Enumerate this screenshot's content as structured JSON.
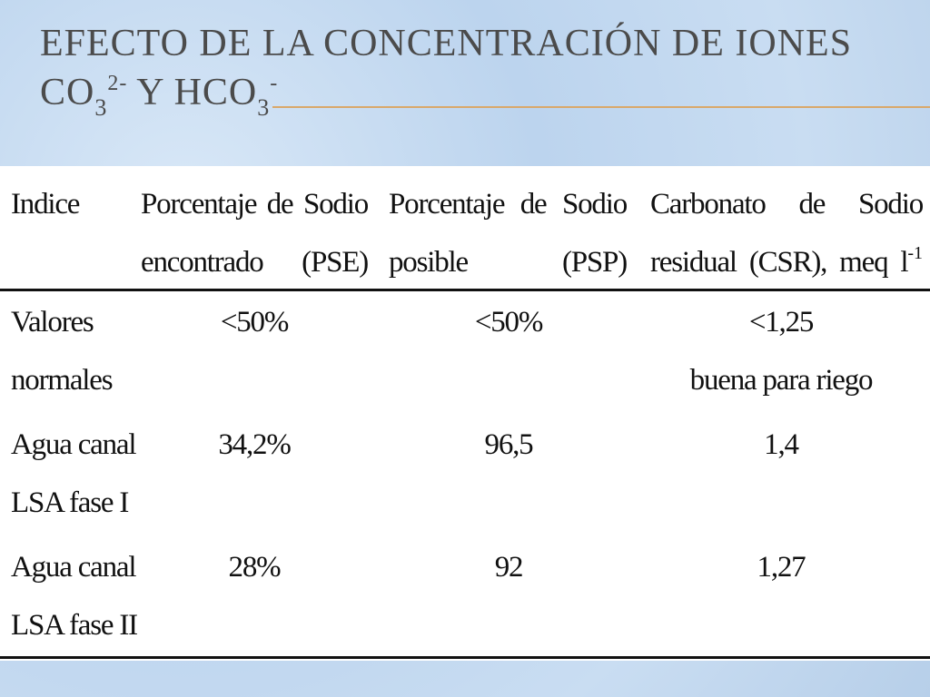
{
  "title": {
    "line1": "EFECTO DE LA CONCENTRACIÓN DE IONES",
    "line2": [
      "CO",
      "3",
      "2-",
      " Y HCO",
      "3",
      "-"
    ]
  },
  "table": {
    "header": [
      "Indice",
      "Porcentaje de Sodio encontrado (PSE)",
      "Porcentaje de Sodio posible (PSP)",
      [
        "Carbonato de Sodio residual (CSR), meq l",
        "-1"
      ]
    ],
    "rows": [
      [
        [
          "Valores",
          "normales"
        ],
        "<50%",
        "<50%",
        [
          "<1,25",
          "buena para riego"
        ]
      ],
      [
        [
          "Agua canal",
          "LSA fase I"
        ],
        "34,2%",
        "96,5",
        "1,4"
      ],
      [
        [
          "Agua canal",
          "LSA fase II"
        ],
        "28%",
        "92",
        "1,27"
      ]
    ]
  }
}
